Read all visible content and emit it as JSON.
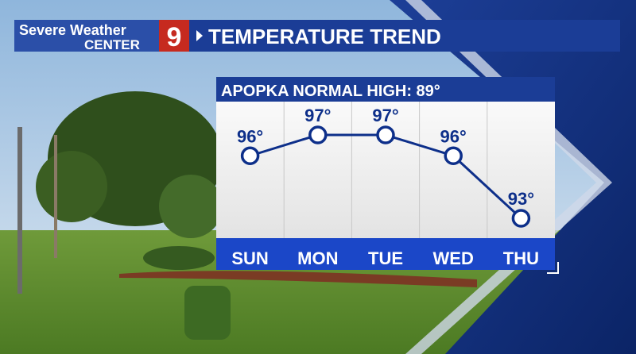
{
  "header": {
    "brand_line1": "Severe Weather",
    "brand_line2": "CENTER",
    "channel": "9"
  },
  "chart_data": {
    "type": "line",
    "title": "TEMPERATURE TREND",
    "subtitle": "APOPKA NORMAL HIGH: 89°",
    "categories": [
      "SUN",
      "MON",
      "TUE",
      "WED",
      "THU"
    ],
    "values": [
      96,
      97,
      97,
      96,
      93
    ],
    "value_labels": [
      "96°",
      "97°",
      "97°",
      "96°",
      "93°"
    ],
    "color": "#0d2f8a"
  }
}
